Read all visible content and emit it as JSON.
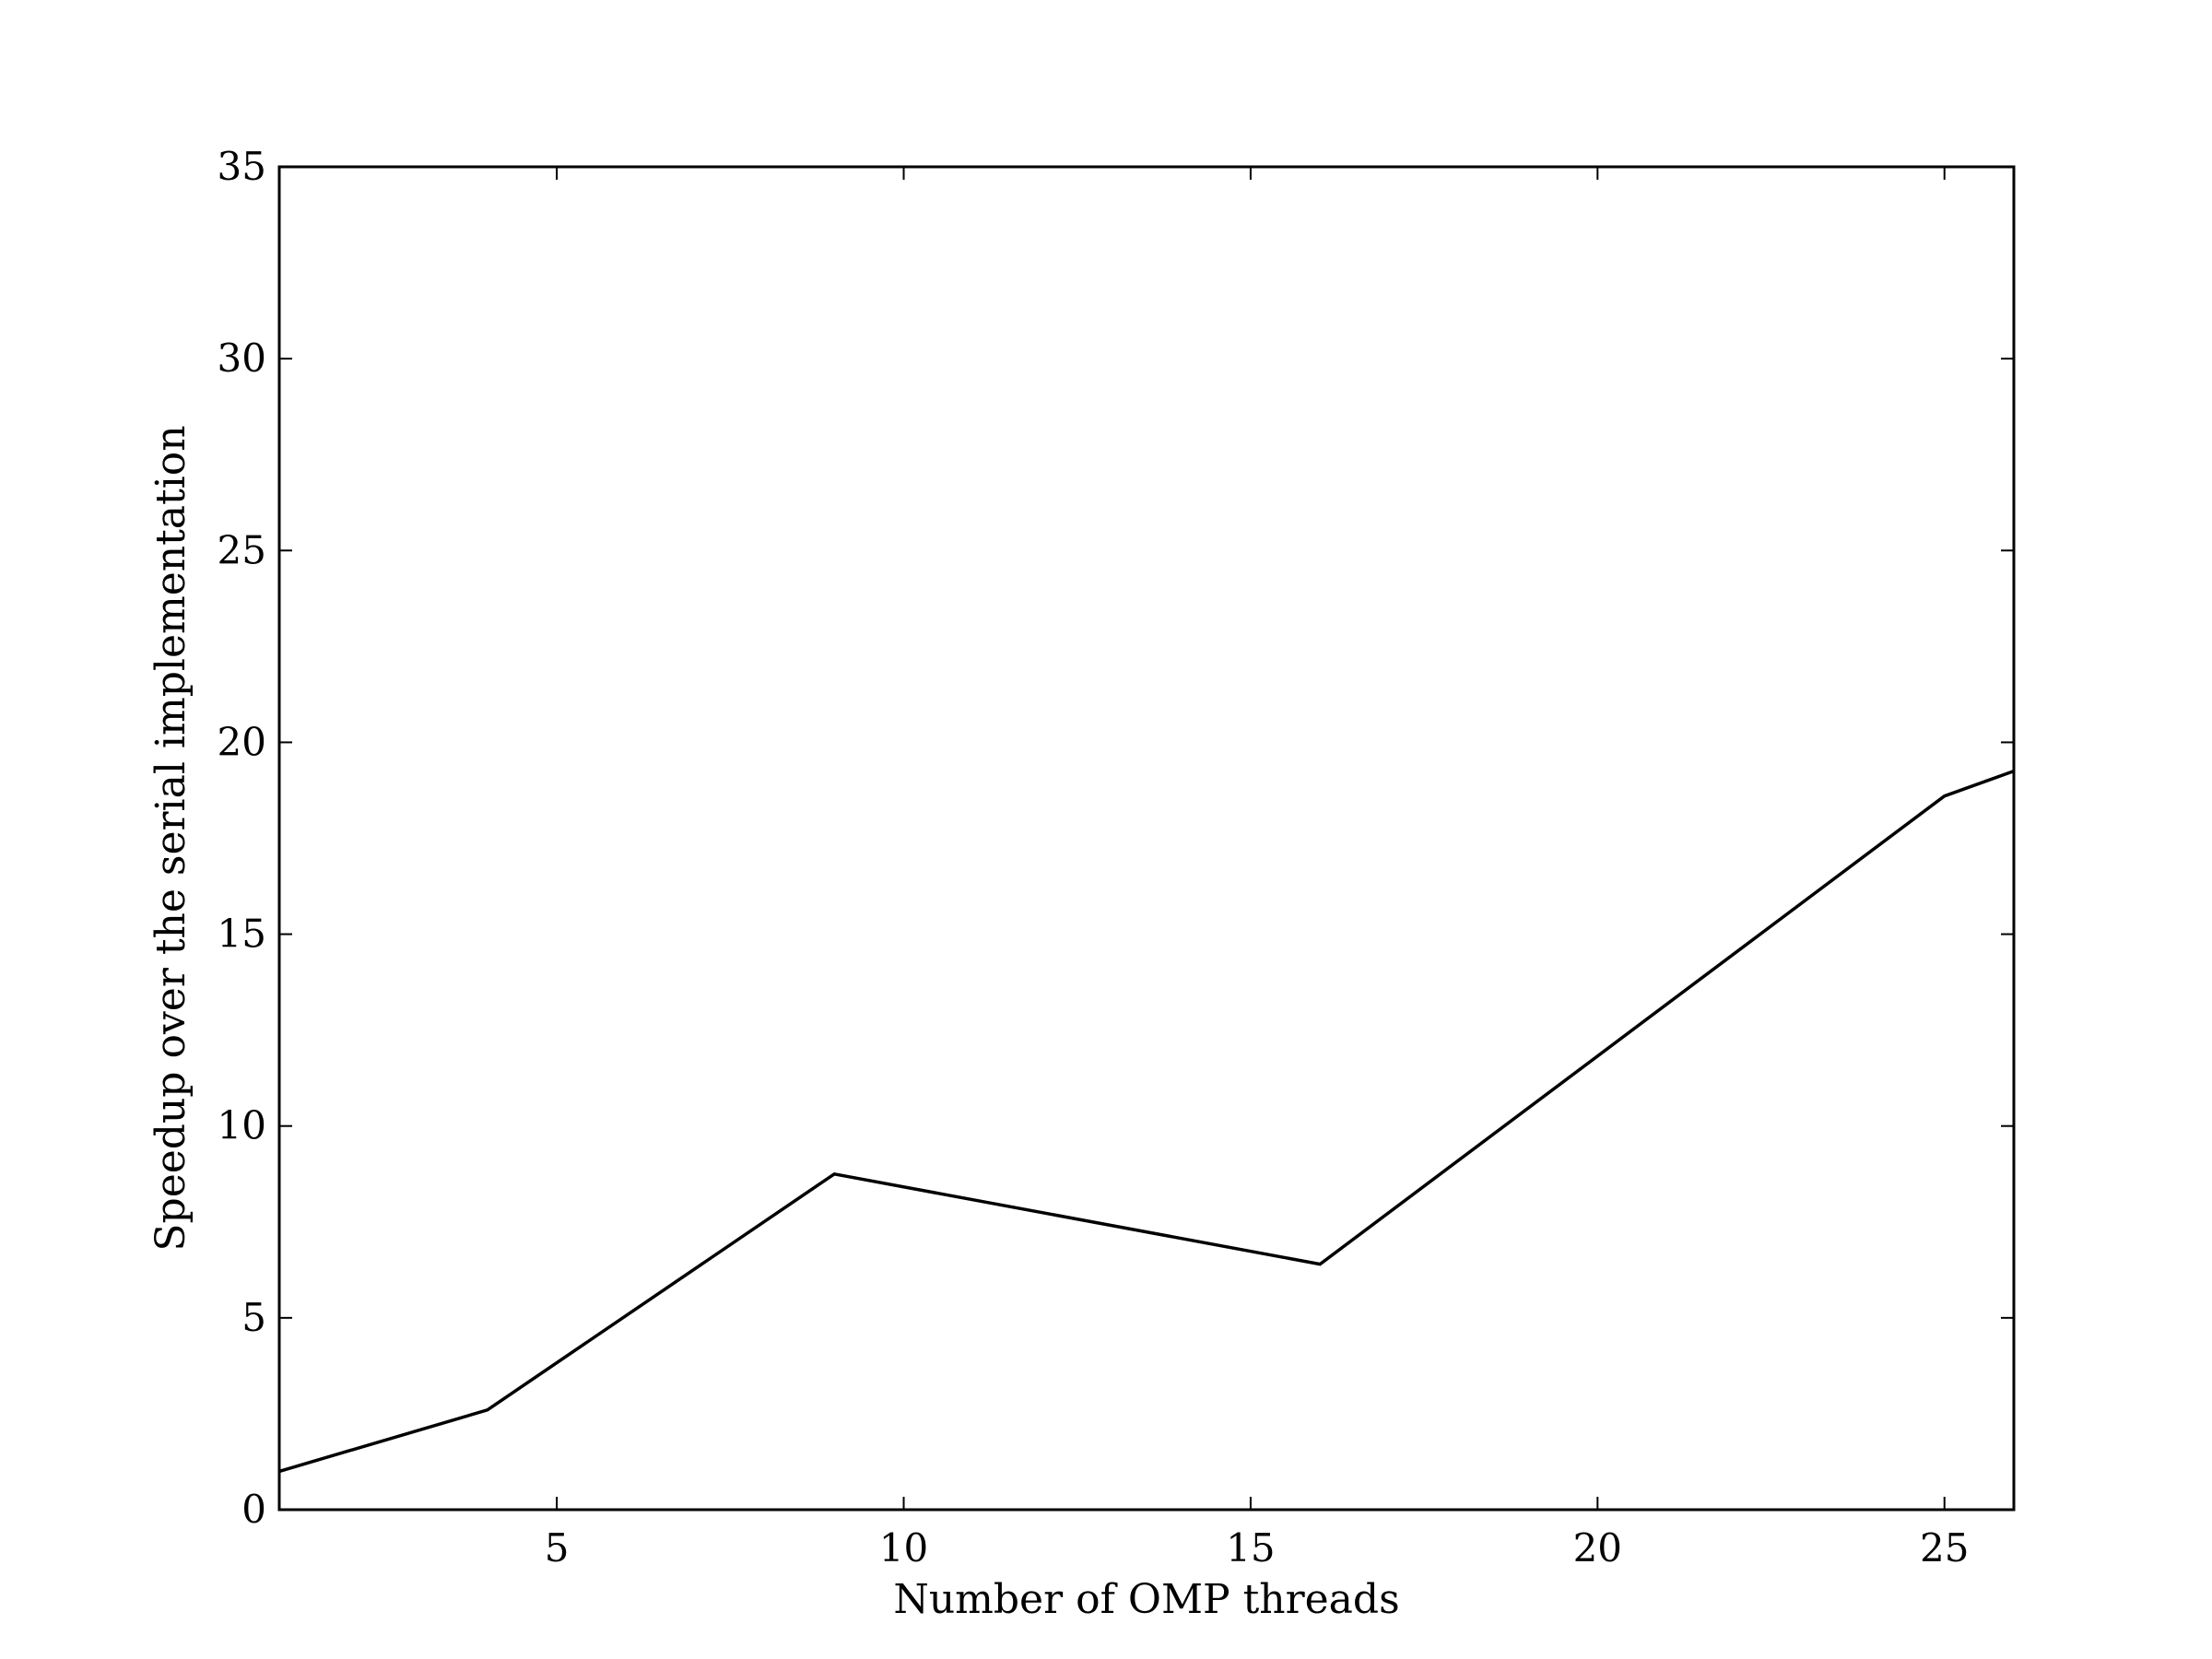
{
  "chart_data": {
    "type": "line",
    "title": "",
    "xlabel": "Number of OMP threads",
    "ylabel": "Speedup over the serial implementation",
    "xlim": [
      1,
      26
    ],
    "ylim": [
      0,
      35
    ],
    "xticks": [
      5,
      10,
      15,
      20,
      25
    ],
    "yticks": [
      0,
      5,
      10,
      15,
      20,
      25,
      30,
      35
    ],
    "grid": false,
    "legend": "none",
    "series": [
      {
        "color": "#000000",
        "x": [
          1,
          4,
          9,
          16,
          25,
          26
        ],
        "y": [
          1.0,
          2.6,
          8.75,
          6.4,
          18.6,
          19.25
        ]
      }
    ]
  }
}
